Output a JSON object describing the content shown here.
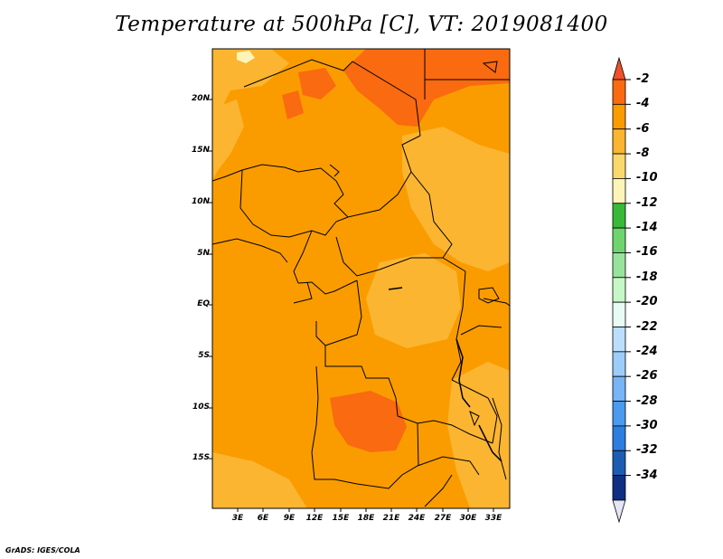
{
  "title": "Temperature at 500hPa [C], VT: 2019081400",
  "footer": "GrADS: IGES/COLA",
  "lat_labels": [
    "20N",
    "15N",
    "10N",
    "5N",
    "EQ",
    "5S",
    "10S",
    "15S"
  ],
  "lon_labels": [
    "3E",
    "6E",
    "9E",
    "12E",
    "15E",
    "18E",
    "21E",
    "24E",
    "27E",
    "30E",
    "33E"
  ],
  "colorbar": {
    "labels": [
      "-2",
      "-4",
      "-6",
      "-8",
      "-10",
      "-12",
      "-14",
      "-16",
      "-18",
      "-20",
      "-22",
      "-24",
      "-26",
      "-28",
      "-30",
      "-32",
      "-34"
    ],
    "colors": [
      "#f0502a",
      "#fa6a10",
      "#fa9c00",
      "#fbb531",
      "#fbd86c",
      "#fdf5b8",
      "#39b939",
      "#6ed56e",
      "#98e39b",
      "#c6f7c6",
      "#e8fcf6",
      "#bcdefd",
      "#9ccdfa",
      "#78b4f6",
      "#4a9aef",
      "#2c7ee0",
      "#1d5cb3",
      "#0f2f82",
      "#e3e6f7"
    ]
  }
}
